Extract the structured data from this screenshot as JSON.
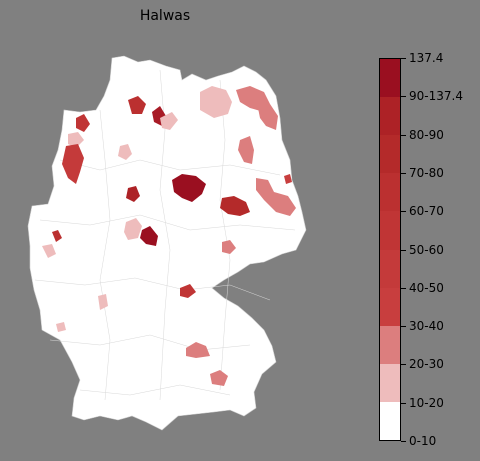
{
  "title": "Halwas",
  "colorbar": {
    "labels": [
      "0-10",
      "10-20",
      "20-30",
      "30-40",
      "40-50",
      "50-60",
      "60-70",
      "70-80",
      "80-90",
      "90-137.4",
      "137.4"
    ],
    "segments": [
      {
        "range": "0-10",
        "color": "#ffffff",
        "span": 1
      },
      {
        "range": "10-20",
        "color": "#eebcbc",
        "span": 1
      },
      {
        "range": "20-30",
        "color": "#dc7e7e",
        "span": 1
      },
      {
        "range": "30-40",
        "color": "#c83e3e",
        "span": 1
      },
      {
        "range": "40-50",
        "color": "#c43a3a",
        "span": 1
      },
      {
        "range": "50-60",
        "color": "#c03535",
        "span": 1
      },
      {
        "range": "60-70",
        "color": "#bb3030",
        "span": 1
      },
      {
        "range": "70-80",
        "color": "#b42a2a",
        "span": 1
      },
      {
        "range": "80-90",
        "color": "#ad2226",
        "span": 1
      },
      {
        "range": "90-137.4",
        "color": "#9a0f20",
        "span": 1
      }
    ]
  },
  "colors": {
    "background": "#808080",
    "land": "#ffffff",
    "border": "#cccccc"
  }
}
